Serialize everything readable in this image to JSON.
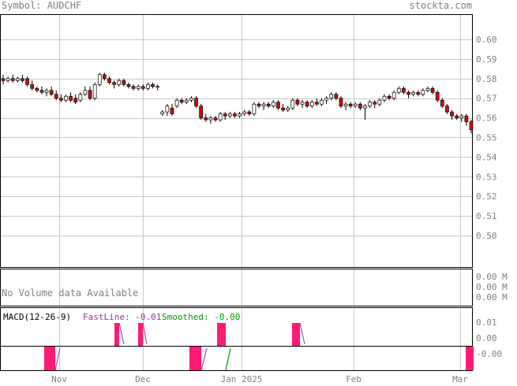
{
  "header": {
    "symbol_label": "Symbol: AUDCHF",
    "site": "stockta.com"
  },
  "colors": {
    "text_gray": "#808080",
    "grid": "#c8c8c8",
    "up_body": "#ffffff",
    "down_body": "#e00000",
    "macd_bar": "#ff1a75",
    "fastline": "#993399",
    "smoothed": "#009900"
  },
  "chart_data": [
    {
      "type": "candlestick",
      "title": "Symbol: AUDCHF",
      "ylim": [
        0.49,
        0.61
      ],
      "y_ticks": [
        "0.60",
        "0.59",
        "0.58",
        "0.57",
        "0.56",
        "0.55",
        "0.54",
        "0.53",
        "0.52",
        "0.51",
        "0.50"
      ],
      "x_ticks": [
        "Nov",
        "Dec",
        "Jan 2025",
        "Feb",
        "Mar"
      ],
      "grid": true,
      "ohlc": [
        [
          0.58,
          0.582,
          0.577,
          0.579
        ],
        [
          0.579,
          0.581,
          0.578,
          0.58
        ],
        [
          0.58,
          0.582,
          0.578,
          0.579
        ],
        [
          0.579,
          0.581,
          0.578,
          0.58
        ],
        [
          0.58,
          0.582,
          0.578,
          0.579
        ],
        [
          0.58,
          0.581,
          0.576,
          0.577
        ],
        [
          0.577,
          0.579,
          0.574,
          0.575
        ],
        [
          0.575,
          0.576,
          0.573,
          0.574
        ],
        [
          0.574,
          0.576,
          0.572,
          0.573
        ],
        [
          0.573,
          0.575,
          0.571,
          0.574
        ],
        [
          0.574,
          0.576,
          0.571,
          0.572
        ],
        [
          0.572,
          0.574,
          0.569,
          0.57
        ],
        [
          0.57,
          0.572,
          0.568,
          0.569
        ],
        [
          0.569,
          0.572,
          0.568,
          0.571
        ],
        [
          0.571,
          0.573,
          0.568,
          0.569
        ],
        [
          0.57,
          0.572,
          0.567,
          0.568
        ],
        [
          0.569,
          0.573,
          0.568,
          0.572
        ],
        [
          0.572,
          0.576,
          0.571,
          0.574
        ],
        [
          0.574,
          0.576,
          0.569,
          0.57
        ],
        [
          0.57,
          0.578,
          0.569,
          0.577
        ],
        [
          0.577,
          0.583,
          0.576,
          0.582
        ],
        [
          0.582,
          0.583,
          0.579,
          0.58
        ],
        [
          0.58,
          0.581,
          0.577,
          0.578
        ],
        [
          0.578,
          0.579,
          0.575,
          0.577
        ],
        [
          0.577,
          0.58,
          0.576,
          0.579
        ],
        [
          0.579,
          0.58,
          0.576,
          0.577
        ],
        [
          0.577,
          0.578,
          0.575,
          0.576
        ],
        [
          0.576,
          0.577,
          0.574,
          0.575
        ],
        [
          0.575,
          0.577,
          0.574,
          0.576
        ],
        [
          0.576,
          0.577,
          0.574,
          0.575
        ],
        [
          0.575,
          0.578,
          0.574,
          0.577
        ],
        [
          0.577,
          0.578,
          0.575,
          0.576
        ],
        [
          0.576,
          0.577,
          0.574,
          0.576
        ],
        [
          0.562,
          0.564,
          0.561,
          0.563
        ],
        [
          0.563,
          0.567,
          0.561,
          0.566
        ],
        [
          0.565,
          0.567,
          0.561,
          0.562
        ],
        [
          0.566,
          0.57,
          0.565,
          0.569
        ],
        [
          0.569,
          0.57,
          0.567,
          0.568
        ],
        [
          0.568,
          0.57,
          0.567,
          0.569
        ],
        [
          0.569,
          0.571,
          0.568,
          0.57
        ],
        [
          0.57,
          0.571,
          0.565,
          0.566
        ],
        [
          0.566,
          0.567,
          0.559,
          0.56
        ],
        [
          0.56,
          0.562,
          0.558,
          0.559
        ],
        [
          0.559,
          0.561,
          0.557,
          0.56
        ],
        [
          0.56,
          0.561,
          0.558,
          0.559
        ],
        [
          0.559,
          0.563,
          0.558,
          0.562
        ],
        [
          0.562,
          0.563,
          0.559,
          0.561
        ],
        [
          0.561,
          0.563,
          0.56,
          0.562
        ],
        [
          0.562,
          0.563,
          0.56,
          0.561
        ],
        [
          0.561,
          0.563,
          0.56,
          0.562
        ],
        [
          0.562,
          0.564,
          0.561,
          0.563
        ],
        [
          0.563,
          0.564,
          0.561,
          0.562
        ],
        [
          0.562,
          0.568,
          0.561,
          0.567
        ],
        [
          0.567,
          0.568,
          0.565,
          0.566
        ],
        [
          0.566,
          0.568,
          0.564,
          0.567
        ],
        [
          0.567,
          0.568,
          0.565,
          0.566
        ],
        [
          0.566,
          0.569,
          0.565,
          0.568
        ],
        [
          0.568,
          0.569,
          0.564,
          0.565
        ],
        [
          0.565,
          0.567,
          0.563,
          0.564
        ],
        [
          0.564,
          0.566,
          0.563,
          0.565
        ],
        [
          0.565,
          0.57,
          0.564,
          0.569
        ],
        [
          0.569,
          0.57,
          0.566,
          0.567
        ],
        [
          0.567,
          0.569,
          0.565,
          0.568
        ],
        [
          0.568,
          0.569,
          0.565,
          0.566
        ],
        [
          0.566,
          0.569,
          0.565,
          0.568
        ],
        [
          0.568,
          0.57,
          0.566,
          0.567
        ],
        [
          0.567,
          0.57,
          0.566,
          0.569
        ],
        [
          0.569,
          0.571,
          0.567,
          0.57
        ],
        [
          0.57,
          0.573,
          0.569,
          0.572
        ],
        [
          0.572,
          0.573,
          0.569,
          0.57
        ],
        [
          0.57,
          0.571,
          0.565,
          0.566
        ],
        [
          0.566,
          0.568,
          0.564,
          0.567
        ],
        [
          0.567,
          0.568,
          0.565,
          0.566
        ],
        [
          0.566,
          0.568,
          0.565,
          0.567
        ],
        [
          0.567,
          0.568,
          0.564,
          0.565
        ],
        [
          0.565,
          0.567,
          0.559,
          0.566
        ],
        [
          0.566,
          0.569,
          0.565,
          0.568
        ],
        [
          0.568,
          0.569,
          0.565,
          0.567
        ],
        [
          0.567,
          0.57,
          0.566,
          0.569
        ],
        [
          0.569,
          0.572,
          0.568,
          0.571
        ],
        [
          0.571,
          0.572,
          0.569,
          0.57
        ],
        [
          0.57,
          0.574,
          0.569,
          0.573
        ],
        [
          0.573,
          0.576,
          0.572,
          0.575
        ],
        [
          0.575,
          0.576,
          0.572,
          0.573
        ],
        [
          0.573,
          0.574,
          0.57,
          0.572
        ],
        [
          0.572,
          0.574,
          0.571,
          0.573
        ],
        [
          0.573,
          0.574,
          0.571,
          0.572
        ],
        [
          0.572,
          0.575,
          0.571,
          0.574
        ],
        [
          0.574,
          0.576,
          0.573,
          0.575
        ],
        [
          0.575,
          0.576,
          0.572,
          0.573
        ],
        [
          0.573,
          0.574,
          0.568,
          0.569
        ],
        [
          0.569,
          0.57,
          0.565,
          0.566
        ],
        [
          0.566,
          0.567,
          0.562,
          0.563
        ],
        [
          0.563,
          0.564,
          0.559,
          0.561
        ],
        [
          0.561,
          0.562,
          0.559,
          0.56
        ],
        [
          0.56,
          0.562,
          0.558,
          0.561
        ],
        [
          0.561,
          0.562,
          0.556,
          0.558
        ],
        [
          0.558,
          0.559,
          0.552,
          0.554
        ]
      ]
    },
    {
      "type": "bar",
      "title": "No Volume data Available",
      "y_ticks": [
        "0.00 M",
        "0.00 M",
        "0.00 M"
      ]
    },
    {
      "type": "bar",
      "legend": {
        "name": "MACD(12-26-9)",
        "fast_label": "FastLine: -0.01",
        "smooth_label": "Smoothed: -0.00"
      },
      "upper_y_ticks": [
        "0.01",
        "0.00"
      ],
      "lower_y_ticks": [
        "-0.00"
      ],
      "upper_bars": [
        {
          "from": 145,
          "to": 151
        },
        {
          "from": 175,
          "to": 181
        },
        {
          "from": 275,
          "to": 286
        },
        {
          "from": 370,
          "to": 380
        }
      ],
      "lower_bars": [
        {
          "from": 56,
          "to": 70
        },
        {
          "from": 240,
          "to": 255
        },
        {
          "from": 590,
          "to": 600
        }
      ],
      "fastline_segments": [
        [
          [
            151,
            410
          ],
          [
            157,
            437
          ]
        ],
        [
          [
            181,
            410
          ],
          [
            186,
            437
          ]
        ],
        [
          [
            380,
            410
          ],
          [
            386,
            437
          ]
        ],
        [
          [
            70,
            470
          ],
          [
            76,
            442
          ]
        ],
        [
          [
            255,
            470
          ],
          [
            262,
            442
          ]
        ]
      ],
      "smoothed_segments": [
        [
          [
            286,
            470
          ],
          [
            292,
            442
          ]
        ]
      ]
    }
  ]
}
